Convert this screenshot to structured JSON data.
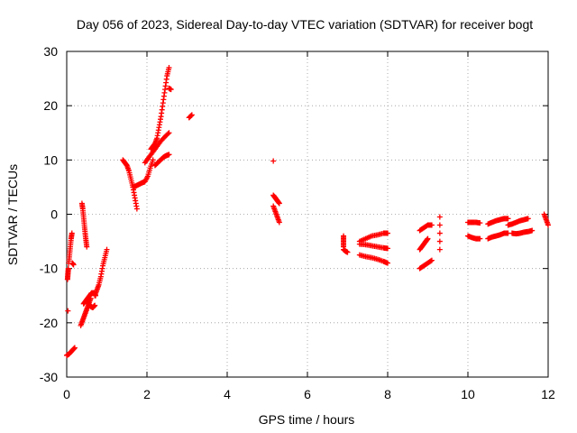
{
  "chart_data": {
    "type": "scatter",
    "title": "Day 056 of 2023, Sidereal Day-to-day VTEC variation (SDTVAR) for receiver bogt",
    "xlabel": "GPS time / hours",
    "ylabel": "SDTVAR / TECUs",
    "xlim": [
      0,
      12
    ],
    "ylim": [
      -30,
      30
    ],
    "xticks": [
      0,
      2,
      4,
      6,
      8,
      10,
      12
    ],
    "yticks": [
      -30,
      -20,
      -10,
      0,
      10,
      20,
      30
    ],
    "grid": true,
    "marker_color": "#ff0000",
    "marker": "plus",
    "segments": [
      {
        "x": [
          0.0,
          0.05,
          0.1,
          0.15,
          0.2
        ],
        "y": [
          -26.0,
          -25.8,
          -25.4,
          -25.0,
          -24.6
        ]
      },
      {
        "x": [
          0.02,
          0.03,
          0.04
        ],
        "y": [
          -12.0,
          -11.0,
          -10.0
        ]
      },
      {
        "x": [
          0.05,
          0.07,
          0.09,
          0.11,
          0.13
        ],
        "y": [
          -9.0,
          -7.5,
          -6.0,
          -4.5,
          -3.5
        ]
      },
      {
        "x": [
          0.14,
          0.17
        ],
        "y": [
          -9.0,
          -9.3
        ]
      },
      {
        "x": [
          0.03
        ],
        "y": [
          -17.8
        ]
      },
      {
        "x": [
          0.38,
          0.4,
          0.42,
          0.44,
          0.46,
          0.48,
          0.5
        ],
        "y": [
          2.0,
          1.0,
          -0.5,
          -2.0,
          -3.5,
          -4.8,
          -6.0
        ]
      },
      {
        "x": [
          0.35,
          0.4,
          0.45,
          0.5,
          0.55,
          0.6
        ],
        "y": [
          -20.5,
          -19.5,
          -18.5,
          -17.5,
          -16.5,
          -15.5
        ]
      },
      {
        "x": [
          0.42,
          0.47,
          0.52,
          0.57,
          0.62,
          0.68,
          0.72
        ],
        "y": [
          -16.5,
          -16.0,
          -15.5,
          -15.0,
          -14.5,
          -14.5,
          -15.0
        ]
      },
      {
        "x": [
          0.5,
          0.55,
          0.6,
          0.65,
          0.7
        ],
        "y": [
          -16.0,
          -16.5,
          -17.0,
          -17.2,
          -16.8
        ]
      },
      {
        "x": [
          0.7,
          0.75,
          0.8,
          0.85,
          0.9,
          0.95,
          1.0
        ],
        "y": [
          -15.0,
          -14.0,
          -13.0,
          -11.5,
          -9.5,
          -8.0,
          -6.5
        ]
      },
      {
        "x": [
          1.4,
          1.45,
          1.5,
          1.55,
          1.6,
          1.65,
          1.7,
          1.75
        ],
        "y": [
          10.0,
          9.5,
          9.0,
          8.0,
          6.5,
          5.0,
          3.0,
          1.0
        ]
      },
      {
        "x": [
          1.65,
          1.72,
          1.8,
          1.88,
          1.95,
          2.02,
          2.08,
          2.15
        ],
        "y": [
          5.0,
          5.2,
          5.5,
          5.8,
          6.0,
          7.0,
          8.5,
          10.0
        ]
      },
      {
        "x": [
          1.95,
          2.05,
          2.15,
          2.25,
          2.35,
          2.45,
          2.55
        ],
        "y": [
          9.5,
          10.5,
          11.5,
          12.5,
          13.5,
          14.3,
          15.0
        ]
      },
      {
        "x": [
          2.1,
          2.15,
          2.2,
          2.25,
          2.3,
          2.35,
          2.4,
          2.45,
          2.5,
          2.55
        ],
        "y": [
          12.0,
          12.5,
          13.0,
          14.0,
          16.0,
          18.0,
          20.5,
          23.0,
          25.5,
          27.0
        ]
      },
      {
        "x": [
          2.55,
          2.6
        ],
        "y": [
          23.2,
          23.0
        ]
      },
      {
        "x": [
          2.2,
          2.27,
          2.34,
          2.41,
          2.48,
          2.55
        ],
        "y": [
          9.0,
          9.5,
          10.0,
          10.5,
          10.8,
          11.0
        ]
      },
      {
        "x": [
          3.05,
          3.12
        ],
        "y": [
          17.8,
          18.3
        ]
      },
      {
        "x": [
          5.15
        ],
        "y": [
          9.8
        ]
      },
      {
        "x": [
          5.15,
          5.2,
          5.25,
          5.3
        ],
        "y": [
          3.5,
          3.0,
          2.5,
          2.0
        ]
      },
      {
        "x": [
          5.15,
          5.2,
          5.25,
          5.3
        ],
        "y": [
          1.5,
          0.5,
          -0.5,
          -1.5
        ]
      },
      {
        "x": [
          6.9,
          6.9,
          6.9
        ],
        "y": [
          -4.0,
          -5.0,
          -6.0
        ]
      },
      {
        "x": [
          6.9,
          6.95,
          7.0
        ],
        "y": [
          -6.5,
          -6.8,
          -7.0
        ]
      },
      {
        "x": [
          7.3,
          7.45,
          7.6,
          7.75,
          7.9,
          8.0
        ],
        "y": [
          -5.0,
          -4.5,
          -4.0,
          -3.8,
          -3.5,
          -3.5
        ]
      },
      {
        "x": [
          7.3,
          7.45,
          7.6,
          7.75,
          7.9,
          8.0
        ],
        "y": [
          -5.5,
          -5.6,
          -5.8,
          -6.0,
          -6.2,
          -6.3
        ]
      },
      {
        "x": [
          7.3,
          7.45,
          7.6,
          7.75,
          7.9,
          8.0
        ],
        "y": [
          -7.5,
          -7.8,
          -8.0,
          -8.3,
          -8.7,
          -9.0
        ]
      },
      {
        "x": [
          8.8,
          8.9,
          9.0,
          9.1
        ],
        "y": [
          -10.0,
          -9.5,
          -9.0,
          -8.5
        ]
      },
      {
        "x": [
          8.8,
          8.85,
          8.9,
          8.95,
          9.0
        ],
        "y": [
          -6.5,
          -6.0,
          -5.5,
          -5.0,
          -4.5
        ]
      },
      {
        "x": [
          8.8,
          8.9,
          9.0,
          9.1
        ],
        "y": [
          -3.0,
          -2.5,
          -2.0,
          -2.0
        ]
      },
      {
        "x": [
          9.3,
          9.3
        ],
        "y": [
          -0.5,
          -6.5
        ]
      },
      {
        "x": [
          10.0,
          10.1,
          10.2,
          10.3
        ],
        "y": [
          -1.5,
          -1.5,
          -1.5,
          -1.6
        ]
      },
      {
        "x": [
          10.0,
          10.1,
          10.2,
          10.3
        ],
        "y": [
          -4.0,
          -4.3,
          -4.5,
          -4.5
        ]
      },
      {
        "x": [
          10.5,
          10.6,
          10.7,
          10.8,
          10.9,
          11.0
        ],
        "y": [
          -1.8,
          -1.5,
          -1.2,
          -1.0,
          -0.8,
          -0.8
        ]
      },
      {
        "x": [
          10.5,
          10.6,
          10.7,
          10.8,
          10.9,
          11.0
        ],
        "y": [
          -4.5,
          -4.2,
          -4.0,
          -3.8,
          -3.5,
          -3.5
        ]
      },
      {
        "x": [
          11.0,
          11.1,
          11.2,
          11.3,
          11.4,
          11.5
        ],
        "y": [
          -2.0,
          -1.8,
          -1.5,
          -1.2,
          -1.0,
          -0.8
        ]
      },
      {
        "x": [
          11.1,
          11.2,
          11.3,
          11.4,
          11.5,
          11.6
        ],
        "y": [
          -3.5,
          -3.6,
          -3.5,
          -3.3,
          -3.2,
          -3.0
        ]
      },
      {
        "x": [
          11.9,
          11.95,
          12.0
        ],
        "y": [
          0.0,
          -1.0,
          -2.0
        ]
      }
    ]
  }
}
